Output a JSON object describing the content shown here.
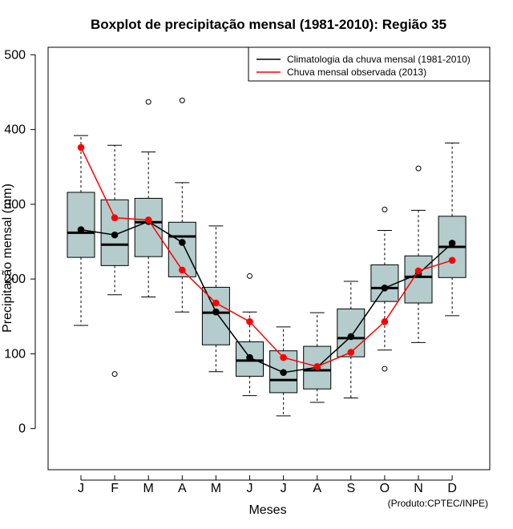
{
  "chart_data": {
    "type": "boxplot",
    "title": "Boxplot de precipitação mensal (1981-2010): Região 35",
    "xlabel": "Meses",
    "ylabel": "Precipitação mensal (mm)",
    "ylim": [
      -55,
      510
    ],
    "yticks": [
      0,
      100,
      200,
      300,
      400,
      500
    ],
    "categories": [
      "J",
      "F",
      "M",
      "A",
      "M",
      "J",
      "J",
      "A",
      "S",
      "O",
      "N",
      "D"
    ],
    "boxes": [
      {
        "whisker_low": 138,
        "q1": 229,
        "median": 262,
        "q3": 316,
        "whisker_high": 392,
        "outliers": []
      },
      {
        "whisker_low": 179,
        "q1": 218,
        "median": 246,
        "q3": 306,
        "whisker_high": 379,
        "outliers": [
          73
        ]
      },
      {
        "whisker_low": 176,
        "q1": 230,
        "median": 276,
        "q3": 308,
        "whisker_high": 370,
        "outliers": [
          437
        ]
      },
      {
        "whisker_low": 156,
        "q1": 203,
        "median": 257,
        "q3": 276,
        "whisker_high": 329,
        "outliers": [
          439
        ]
      },
      {
        "whisker_low": 76,
        "q1": 112,
        "median": 155,
        "q3": 189,
        "whisker_high": 271,
        "outliers": []
      },
      {
        "whisker_low": 44,
        "q1": 70,
        "median": 91,
        "q3": 116,
        "whisker_high": 156,
        "outliers": [
          204
        ]
      },
      {
        "whisker_low": 17,
        "q1": 48,
        "median": 65,
        "q3": 104,
        "whisker_high": 136,
        "outliers": []
      },
      {
        "whisker_low": 35,
        "q1": 53,
        "median": 78,
        "q3": 110,
        "whisker_high": 155,
        "outliers": []
      },
      {
        "whisker_low": 41,
        "q1": 96,
        "median": 121,
        "q3": 160,
        "whisker_high": 197,
        "outliers": []
      },
      {
        "whisker_low": 105,
        "q1": 170,
        "median": 188,
        "q3": 219,
        "whisker_high": 265,
        "outliers": [
          293,
          80
        ]
      },
      {
        "whisker_low": 115,
        "q1": 168,
        "median": 203,
        "q3": 231,
        "whisker_high": 292,
        "outliers": [
          348
        ]
      },
      {
        "whisker_low": 151,
        "q1": 202,
        "median": 243,
        "q3": 284,
        "whisker_high": 382,
        "outliers": []
      }
    ],
    "series": [
      {
        "name": "Climatologia da chuva mensal (1981-2010)",
        "color": "#000000",
        "values": [
          266,
          259,
          277,
          249,
          156,
          95,
          75,
          82,
          123,
          188,
          207,
          248
        ]
      },
      {
        "name": "Chuva mensal observada (2013)",
        "color": "#ff0000",
        "values": [
          376,
          282,
          279,
          212,
          168,
          143,
          95,
          83,
          102,
          143,
          211,
          225
        ]
      }
    ],
    "legend_position": "top-right",
    "box_fill": "#b4cccc",
    "credit": "(Produto:CPTEC/INPE)"
  }
}
